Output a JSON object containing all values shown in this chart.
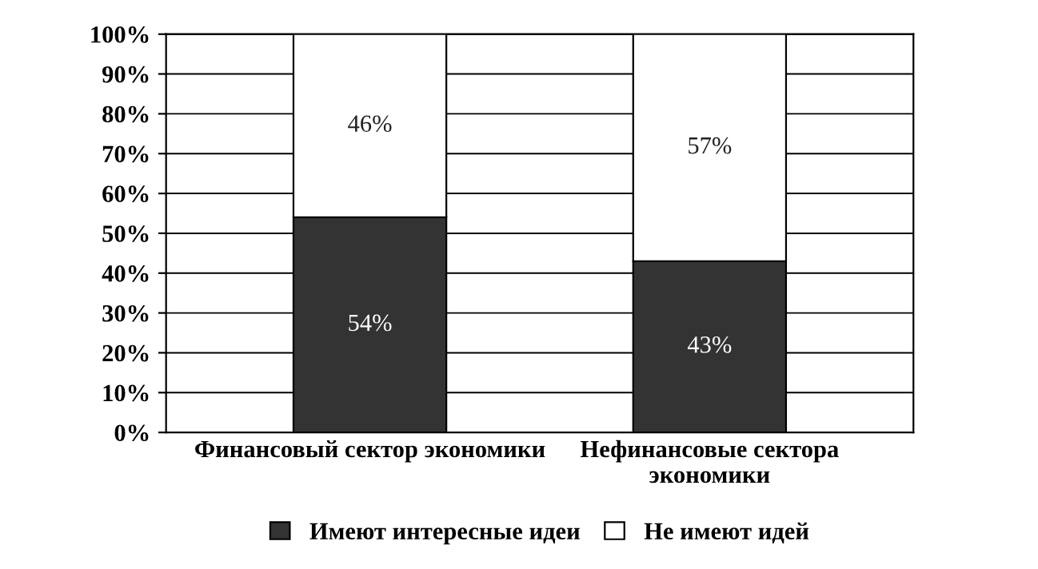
{
  "chart_data": {
    "type": "bar",
    "stacked": true,
    "categories": [
      "Финансовый сектор экономики",
      "Нефинансовые сектора\nэкономики"
    ],
    "series": [
      {
        "name": "Имеют интересные идеи",
        "color": "#333333",
        "values": [
          54,
          43
        ],
        "value_labels": [
          "54%",
          "43%"
        ]
      },
      {
        "name": "Не имеют идей",
        "color": "#ffffff",
        "values": [
          46,
          57
        ],
        "value_labels": [
          "46%",
          "57%"
        ]
      }
    ],
    "ylim": [
      0,
      100
    ],
    "yticks": [
      {
        "value": 0,
        "label": "0%"
      },
      {
        "value": 10,
        "label": "10%"
      },
      {
        "value": 20,
        "label": "20%"
      },
      {
        "value": 30,
        "label": "30%"
      },
      {
        "value": 40,
        "label": "40%"
      },
      {
        "value": 50,
        "label": "50%"
      },
      {
        "value": 60,
        "label": "60%"
      },
      {
        "value": 70,
        "label": "70%"
      },
      {
        "value": 80,
        "label": "80%"
      },
      {
        "value": 90,
        "label": "90%"
      },
      {
        "value": 100,
        "label": "100%"
      }
    ],
    "grid": "y",
    "legend": "bottom"
  }
}
